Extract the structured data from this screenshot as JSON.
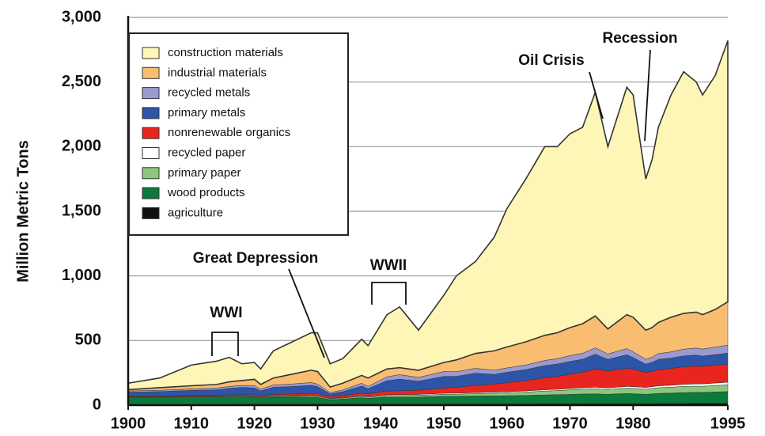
{
  "chart_data": {
    "type": "stacked_area",
    "ylabel": "Million Metric Tons",
    "x": [
      1900,
      1905,
      1910,
      1914,
      1916,
      1918,
      1920,
      1921,
      1923,
      1926,
      1929,
      1930,
      1932,
      1934,
      1937,
      1938,
      1941,
      1943,
      1946,
      1950,
      1952,
      1955,
      1958,
      1960,
      1963,
      1966,
      1968,
      1970,
      1972,
      1974,
      1976,
      1979,
      1980,
      1982,
      1983,
      1984,
      1986,
      1988,
      1990,
      1991,
      1993,
      1995
    ],
    "xlim": [
      1900,
      1995
    ],
    "xticks": [
      1900,
      1910,
      1920,
      1930,
      1940,
      1950,
      1960,
      1970,
      1980,
      1995
    ],
    "ylim": [
      0,
      3000
    ],
    "yticks": [
      0,
      500,
      {
        "value": 1000,
        "label": "1,000"
      },
      {
        "value": 1500,
        "label": "1,500"
      },
      {
        "value": 2000,
        "label": "2,000"
      },
      {
        "value": 2500,
        "label": "2,500"
      },
      {
        "value": 3000,
        "label": "3,000"
      }
    ],
    "grid": true,
    "legend": "upper left",
    "annotations": [
      "WWI",
      "Great Depression",
      "WWII",
      "Oil Crisis",
      "Recession"
    ],
    "series": [
      {
        "name": "construction materials",
        "color": "#fdf6b6",
        "values": [
          50,
          75,
          160,
          180,
          190,
          130,
          130,
          120,
          210,
          250,
          290,
          300,
          180,
          190,
          280,
          250,
          420,
          470,
          310,
          520,
          650,
          710,
          880,
          1070,
          1260,
          1460,
          1440,
          1500,
          1520,
          1730,
          1410,
          1760,
          1720,
          1170,
          1300,
          1510,
          1720,
          1870,
          1780,
          1700,
          1810,
          2020
        ]
      },
      {
        "name": "industrial materials",
        "color": "#f9bd72",
        "values": [
          10,
          20,
          24,
          28,
          35,
          37,
          49,
          36,
          54,
          76,
          95,
          97,
          43,
          52,
          60,
          65,
          61,
          54,
          55,
          70,
          91,
          115,
          150,
          162,
          179,
          194,
          200,
          217,
          229,
          246,
          194,
          262,
          267,
          225,
          229,
          241,
          268,
          277,
          278,
          266,
          291,
          336
        ]
      },
      {
        "name": "recycled metals",
        "color": "#9b99d0",
        "values": [
          10,
          10,
          12,
          14,
          15,
          16,
          18,
          14,
          18,
          20,
          22,
          20,
          10,
          14,
          22,
          18,
          30,
          35,
          30,
          38,
          36,
          38,
          32,
          34,
          36,
          40,
          42,
          45,
          46,
          50,
          42,
          48,
          45,
          38,
          40,
          45,
          48,
          52,
          55,
          55,
          58,
          62
        ]
      },
      {
        "name": "primary metals",
        "color": "#2c55a8",
        "values": [
          30,
          32,
          38,
          40,
          50,
          55,
          52,
          35,
          55,
          58,
          62,
          55,
          20,
          30,
          55,
          40,
          80,
          90,
          70,
          90,
          85,
          95,
          75,
          80,
          85,
          95,
          95,
          100,
          100,
          115,
          90,
          105,
          90,
          65,
          70,
          80,
          80,
          85,
          85,
          80,
          82,
          85
        ]
      },
      {
        "name": "nonrenewable organics",
        "color": "#e8261f",
        "values": [
          5,
          6,
          7,
          8,
          9,
          10,
          11,
          11,
          12,
          14,
          16,
          16,
          14,
          15,
          20,
          20,
          28,
          30,
          32,
          40,
          45,
          55,
          62,
          70,
          80,
          92,
          100,
          110,
          120,
          140,
          130,
          140,
          135,
          115,
          118,
          125,
          130,
          135,
          138,
          135,
          138,
          140
        ]
      },
      {
        "name": "recycled paper",
        "color": "#ffffff",
        "values": [
          2,
          2,
          2,
          3,
          3,
          3,
          3,
          3,
          4,
          4,
          5,
          5,
          4,
          4,
          5,
          5,
          6,
          6,
          7,
          8,
          8,
          8,
          9,
          9,
          9,
          10,
          10,
          10,
          11,
          12,
          12,
          13,
          13,
          13,
          14,
          14,
          15,
          16,
          17,
          18,
          19,
          20
        ]
      },
      {
        "name": "primary paper",
        "color": "#8dc77b",
        "values": [
          3,
          3,
          4,
          4,
          5,
          5,
          5,
          5,
          6,
          7,
          8,
          8,
          7,
          8,
          10,
          9,
          12,
          12,
          13,
          15,
          16,
          18,
          20,
          22,
          26,
          30,
          32,
          35,
          38,
          40,
          38,
          42,
          42,
          40,
          42,
          44,
          46,
          48,
          48,
          48,
          50,
          52
        ]
      },
      {
        "name": "wood products",
        "color": "#0b7a3b",
        "values": [
          55,
          57,
          58,
          58,
          58,
          58,
          56,
          50,
          55,
          55,
          55,
          52,
          35,
          40,
          50,
          45,
          55,
          55,
          55,
          60,
          60,
          62,
          62,
          63,
          65,
          68,
          70,
          72,
          74,
          75,
          72,
          78,
          76,
          72,
          75,
          78,
          80,
          84,
          85,
          84,
          88,
          90
        ]
      },
      {
        "name": "agriculture",
        "color": "#111111",
        "values": [
          5,
          5,
          5,
          5,
          5,
          6,
          6,
          6,
          6,
          6,
          7,
          7,
          7,
          7,
          8,
          8,
          8,
          8,
          8,
          9,
          9,
          9,
          10,
          10,
          10,
          11,
          11,
          11,
          12,
          12,
          12,
          12,
          12,
          12,
          12,
          13,
          13,
          13,
          14,
          14,
          14,
          15
        ]
      }
    ]
  }
}
